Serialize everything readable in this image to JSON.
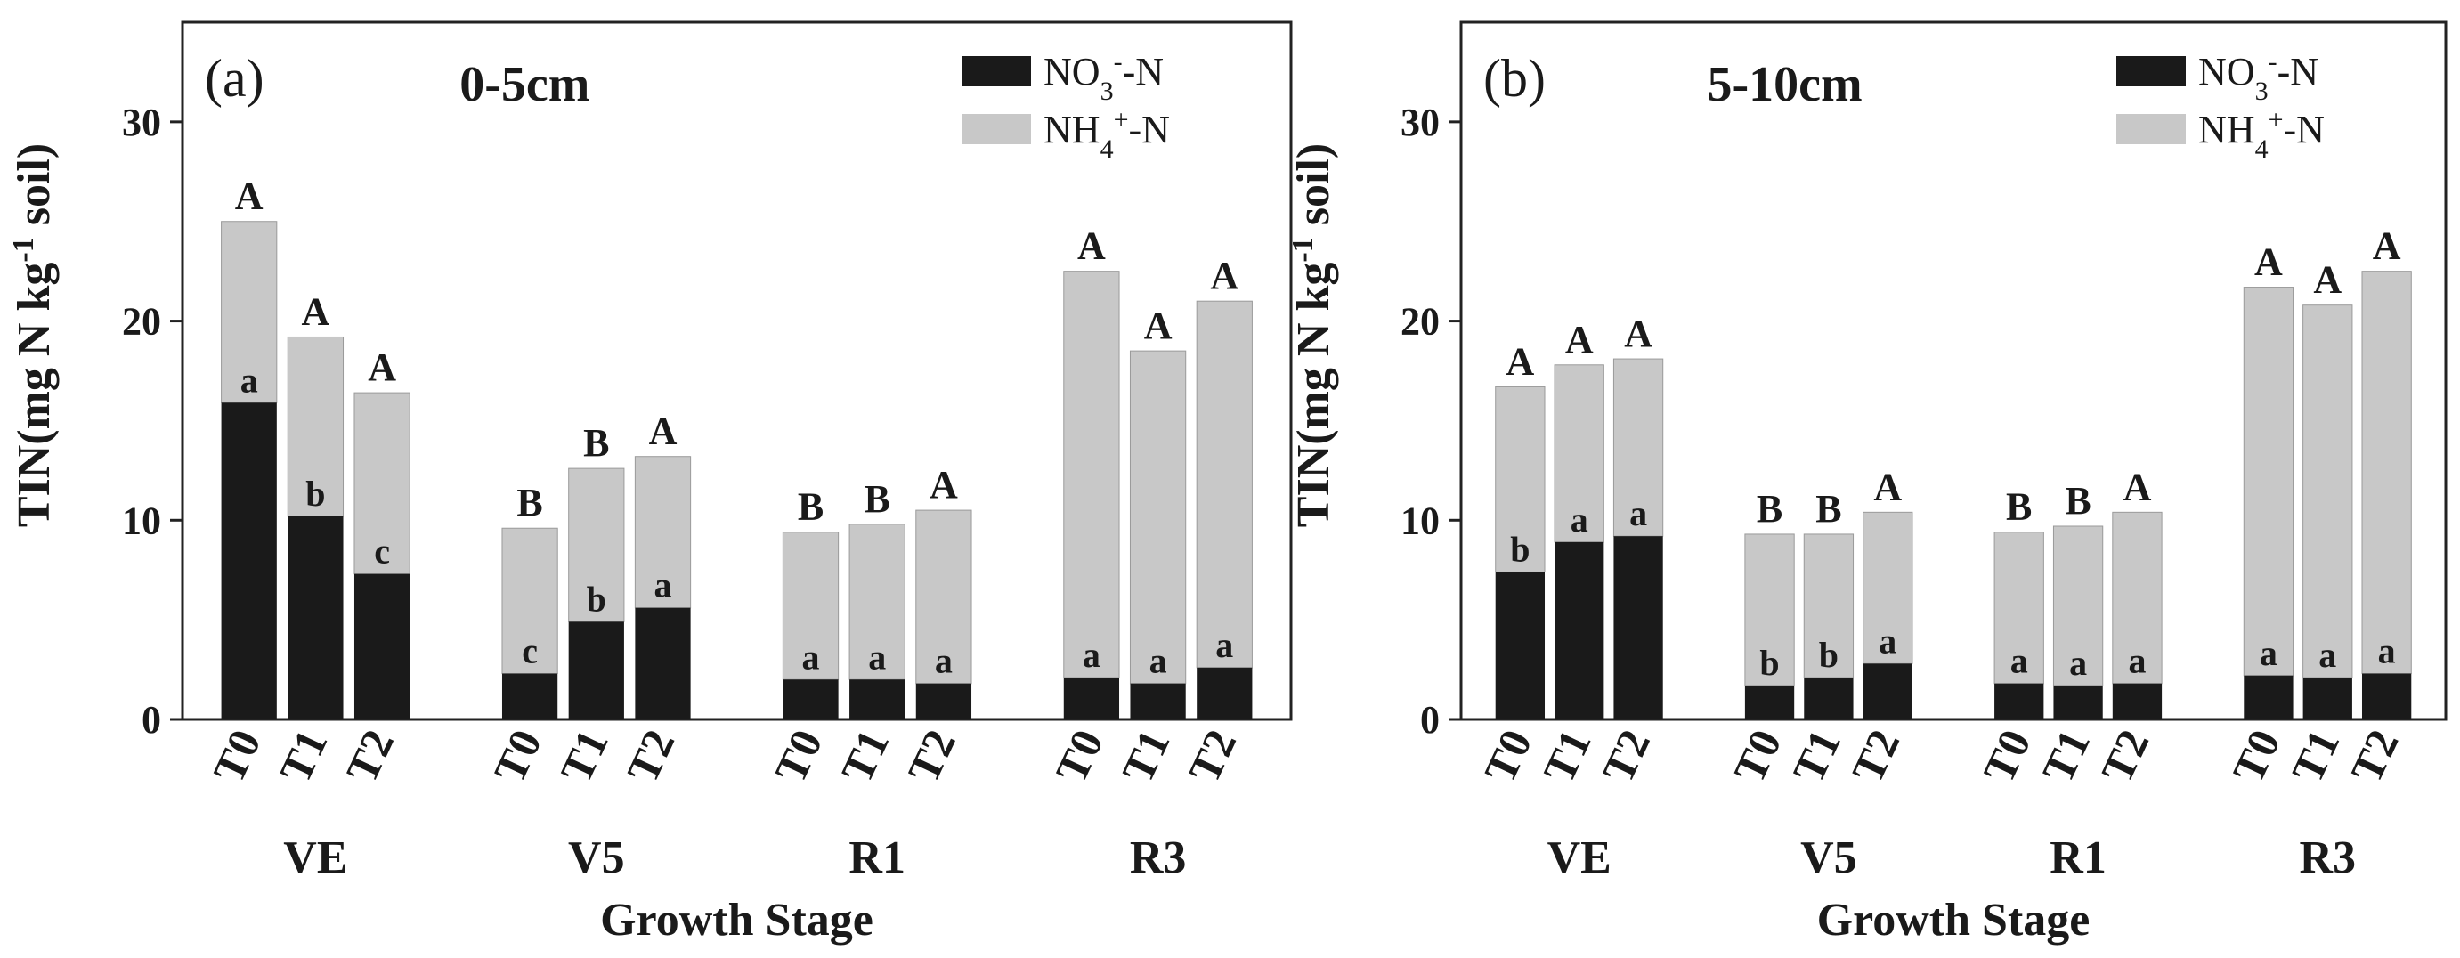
{
  "chart_data": [
    {
      "type": "bar",
      "stacked": true,
      "panel_label": "(a)",
      "title": "0-5cm",
      "xlabel": "Growth Stage",
      "ylabel": "TIN(mg N kg-1 soil)",
      "ylim": [
        0,
        35
      ],
      "yticks": [
        0,
        10,
        20,
        30
      ],
      "legend_position": "top-right",
      "groups": [
        "VE",
        "V5",
        "R1",
        "R3"
      ],
      "treatments": [
        "T0",
        "T1",
        "T2"
      ],
      "series": [
        {
          "name": "NO3--N",
          "color": "#1a1a1a",
          "values": [
            15.9,
            10.2,
            7.3,
            2.3,
            4.9,
            5.6,
            2.0,
            2.0,
            1.8,
            2.1,
            1.8,
            2.6
          ]
        },
        {
          "name": "NH4+-N",
          "color": "#c8c8c8",
          "values": [
            9.1,
            9.0,
            9.1,
            7.3,
            7.7,
            7.6,
            7.4,
            7.8,
            8.7,
            20.4,
            16.7,
            18.4
          ]
        }
      ],
      "upper_letters": [
        "A",
        "A",
        "A",
        "B",
        "B",
        "A",
        "B",
        "B",
        "A",
        "A",
        "A",
        "A"
      ],
      "lower_letters": [
        "a",
        "b",
        "c",
        "c",
        "b",
        "a",
        "a",
        "a",
        "a",
        "a",
        "a",
        "a"
      ]
    },
    {
      "type": "bar",
      "stacked": true,
      "panel_label": "(b)",
      "title": "5-10cm",
      "xlabel": "Growth Stage",
      "ylabel": "TIN(mg N kg-1 soil)",
      "ylim": [
        0,
        35
      ],
      "yticks": [
        0,
        10,
        20,
        30
      ],
      "legend_position": "top-right",
      "groups": [
        "VE",
        "V5",
        "R1",
        "R3"
      ],
      "treatments": [
        "T0",
        "T1",
        "T2"
      ],
      "series": [
        {
          "name": "NO3--N",
          "color": "#1a1a1a",
          "values": [
            7.4,
            8.9,
            9.2,
            1.7,
            2.1,
            2.8,
            1.8,
            1.7,
            1.8,
            2.2,
            2.1,
            2.3
          ]
        },
        {
          "name": "NH4+-N",
          "color": "#c8c8c8",
          "values": [
            9.3,
            8.9,
            8.9,
            7.6,
            7.2,
            7.6,
            7.6,
            8.0,
            8.6,
            19.5,
            18.7,
            20.2
          ]
        }
      ],
      "upper_letters": [
        "A",
        "A",
        "A",
        "B",
        "B",
        "A",
        "B",
        "B",
        "A",
        "A",
        "A",
        "A"
      ],
      "lower_letters": [
        "b",
        "a",
        "a",
        "b",
        "b",
        "a",
        "a",
        "a",
        "a",
        "a",
        "a",
        "a"
      ]
    }
  ]
}
